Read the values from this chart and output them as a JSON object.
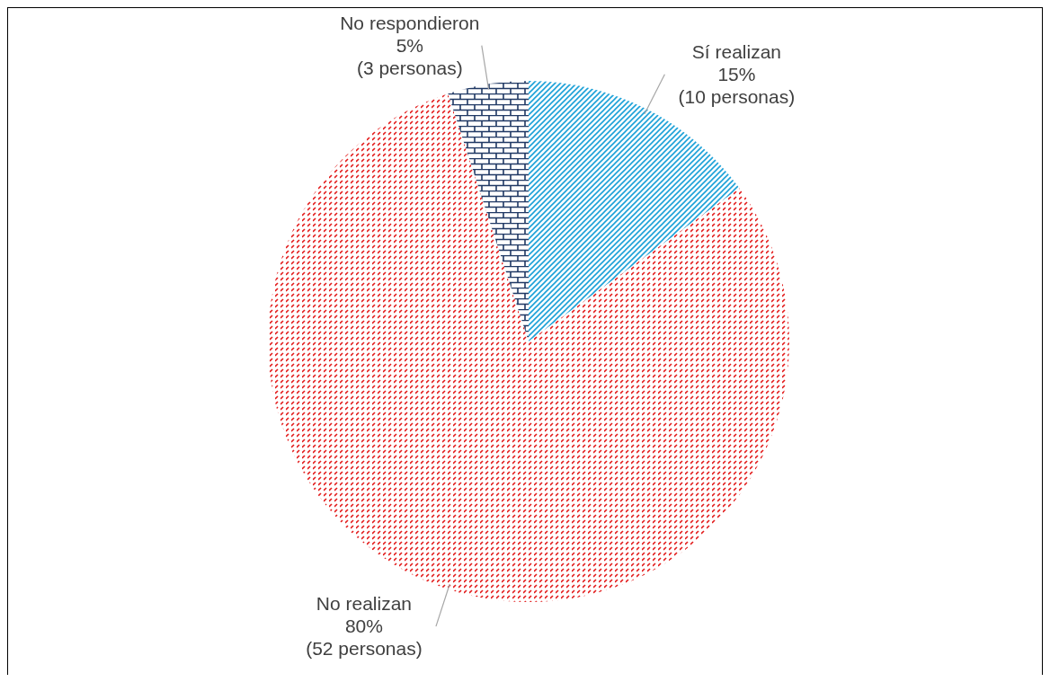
{
  "chart_data": {
    "type": "pie",
    "categories": [
      "Sí realizan",
      "No realizan",
      "No respondieron"
    ],
    "values": [
      15,
      80,
      5
    ],
    "value_labels": [
      "15%",
      "80%",
      "5%"
    ],
    "colors": [
      "#1ba1d8",
      "#e31b1b",
      "#1f3864"
    ],
    "annotations": [
      "(10 personas)",
      "(52 personas)",
      "(3 personas)"
    ]
  }
}
